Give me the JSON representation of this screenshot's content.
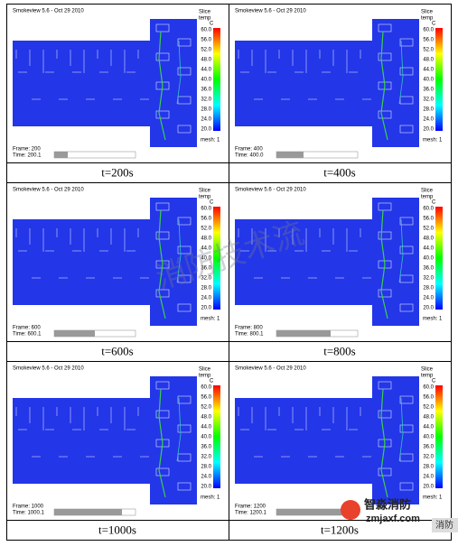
{
  "app": {
    "title": "Smokeview 5.6 - Oct 29 2010",
    "colorbar": {
      "title": "Slice",
      "quantity": "temp",
      "unit": "C",
      "labels": [
        "60.0",
        "56.0",
        "52.0",
        "48.0",
        "44.0",
        "40.0",
        "36.0",
        "32.0",
        "28.0",
        "24.0",
        "20.0"
      ]
    },
    "mesh": "mesh: 1"
  },
  "panels": [
    {
      "frame": "Frame: 200",
      "time": "Time: 200.1",
      "caption": "t=200s"
    },
    {
      "frame": "Frame: 400",
      "time": "Time: 400.0",
      "caption": "t=400s"
    },
    {
      "frame": "Frame: 600",
      "time": "Time: 600.1",
      "caption": "t=600s"
    },
    {
      "frame": "Frame: 800",
      "time": "Time: 800.1",
      "caption": "t=800s"
    },
    {
      "frame": "Frame: 1000",
      "time": "Time: 1000.1",
      "caption": "t=1000s"
    },
    {
      "frame": "Frame: 1200",
      "time": "Time: 1200.1",
      "caption": "t=1200s"
    }
  ],
  "watermark": "消防技术流",
  "logo": {
    "name": "智淼消防",
    "url": "zmjaxf.com"
  },
  "corner": "消防"
}
